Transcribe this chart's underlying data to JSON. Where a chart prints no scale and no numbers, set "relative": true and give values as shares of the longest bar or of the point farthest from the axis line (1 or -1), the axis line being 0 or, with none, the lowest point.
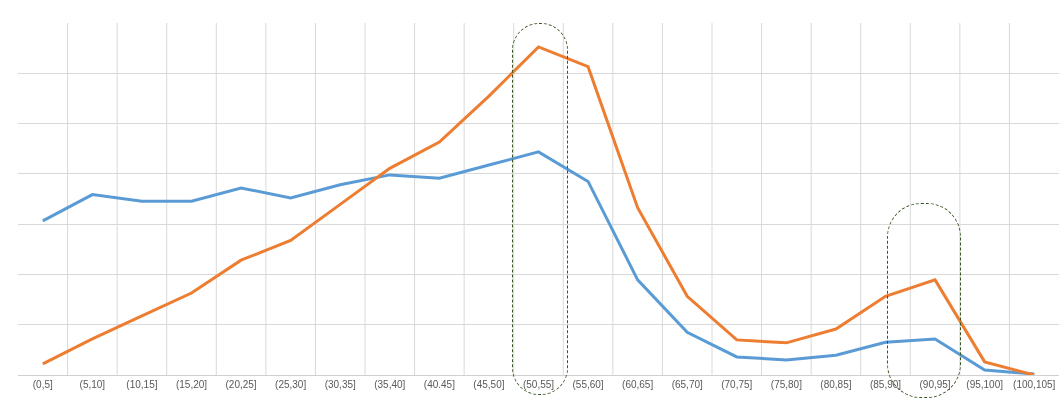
{
  "chart_data": {
    "type": "line",
    "relative": true,
    "grid": true,
    "marker": "none",
    "line_style": "solid",
    "categories": [
      "(0,5]",
      "(5,10]",
      "(10,15]",
      "(15,20]",
      "(20,25]",
      "(25,30]",
      "(30,35]",
      "(35,40]",
      "(40.45]",
      "(45,50]",
      "(50,55]",
      "(55,60]",
      "(60,65]",
      "(65,70]",
      "(70,75]",
      "(75,80]",
      "(80,85]",
      "(85,90]",
      "(90,95]",
      "(95,100]",
      "(100,105]"
    ],
    "series": [
      {
        "color": "#5b9bd5",
        "values": [
          0.47,
          0.55,
          0.53,
          0.53,
          0.57,
          0.54,
          0.58,
          0.61,
          0.6,
          0.64,
          0.68,
          0.59,
          0.29,
          0.13,
          0.055,
          0.046,
          0.06,
          0.1,
          0.11,
          0.015,
          0.003
        ]
      },
      {
        "color": "#ed7d31",
        "values": [
          0.034,
          0.11,
          0.18,
          0.25,
          0.35,
          0.41,
          0.52,
          0.63,
          0.71,
          0.85,
          1,
          0.94,
          0.51,
          0.24,
          0.107,
          0.098,
          0.14,
          0.24,
          0.29,
          0.04,
          0
        ]
      }
    ]
  }
}
